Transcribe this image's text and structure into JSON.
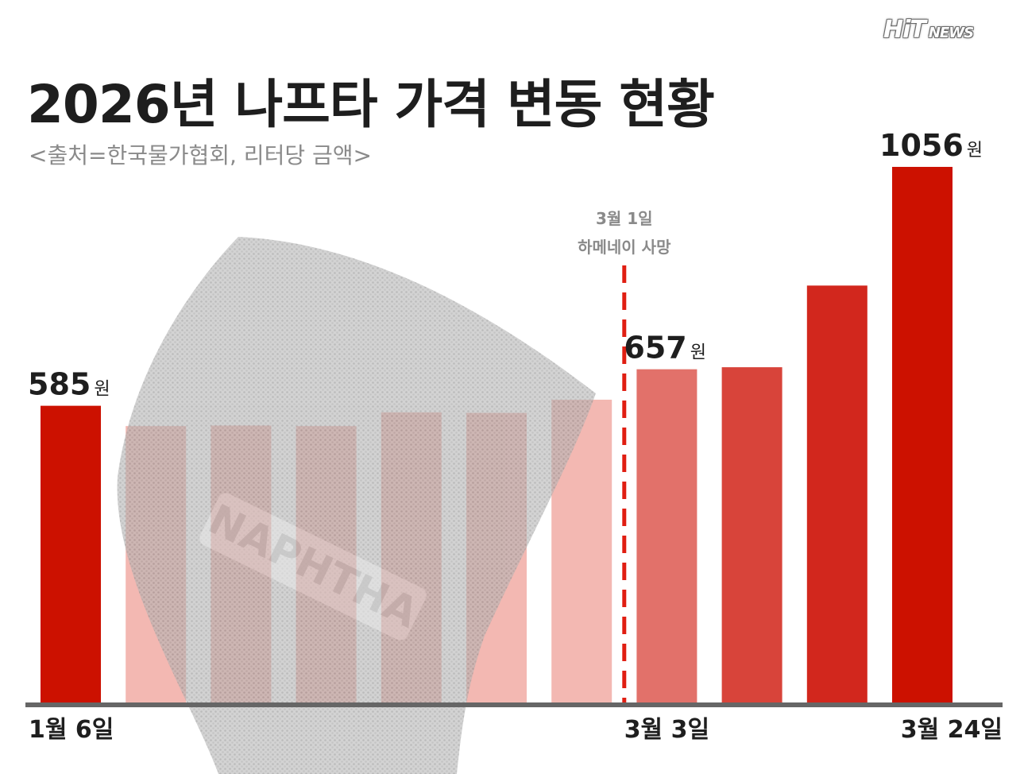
{
  "brand": {
    "logo_main": "HiT",
    "logo_sub": "NEWS"
  },
  "header": {
    "title": "2026년 나프타 가격 변동 현황",
    "subtitle": "<출처=한국물가협회, 리터당 금액>"
  },
  "chart_data": {
    "type": "bar",
    "categories": [
      "1월 6일",
      "",
      "",
      "",
      "",
      "",
      "",
      "3월 3일",
      "",
      "",
      "3월 24일"
    ],
    "values": [
      585,
      545,
      546,
      545,
      572,
      571,
      597,
      657,
      661,
      822,
      1056
    ],
    "data_labels": [
      {
        "index": 0,
        "value": "585",
        "unit": "원"
      },
      {
        "index": 7,
        "value": "657",
        "unit": "원"
      },
      {
        "index": 10,
        "value": "1056",
        "unit": "원"
      }
    ],
    "annotation": {
      "after_index": 6,
      "line1": "3월 1일",
      "line2": "하메네이 사망"
    },
    "watermark_text": "NAPHTHA",
    "colors": [
      "#cc1100",
      "#f3b8b2",
      "#f3b8b2",
      "#f3b8b2",
      "#f3b8b2",
      "#f3b8b2",
      "#f3b8b2",
      "#e2716a",
      "#d8443a",
      "#d2271d",
      "#cc1100"
    ],
    "annotation_color": "#e01e12",
    "axis_color": "#666666",
    "ylim": [
      0,
      1056
    ]
  }
}
